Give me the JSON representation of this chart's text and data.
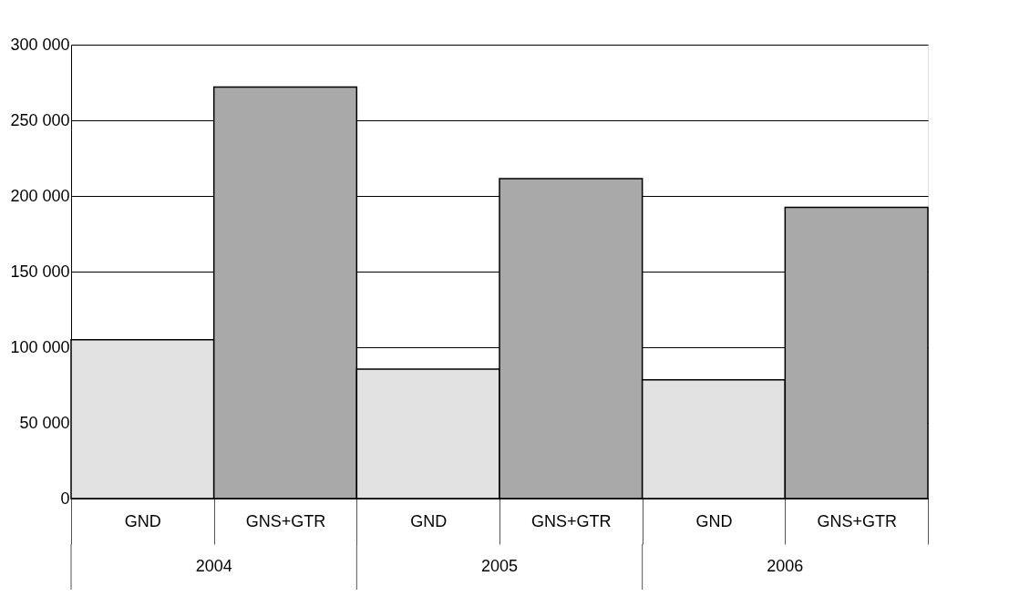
{
  "chart_data": {
    "type": "bar",
    "categories": [
      "2004",
      "2005",
      "2006"
    ],
    "series": [
      {
        "name": "GND",
        "color": "#e2e2e2",
        "values": [
          105000,
          85500,
          78500
        ]
      },
      {
        "name": "GNS+GTR",
        "color": "#a9a9a9",
        "values": [
          272000,
          211500,
          192500
        ]
      }
    ],
    "ylim": [
      0,
      300000
    ],
    "yticks": [
      0,
      {
        "value": 50000,
        "label": "50 000"
      },
      {
        "value": 100000,
        "label": "100 000"
      },
      {
        "value": 150000,
        "label": "150 000"
      },
      {
        "value": 200000,
        "label": "200 000"
      },
      {
        "value": 250000,
        "label": "250 000"
      },
      {
        "value": 300000,
        "label": "300 000"
      }
    ],
    "grid": "y"
  }
}
